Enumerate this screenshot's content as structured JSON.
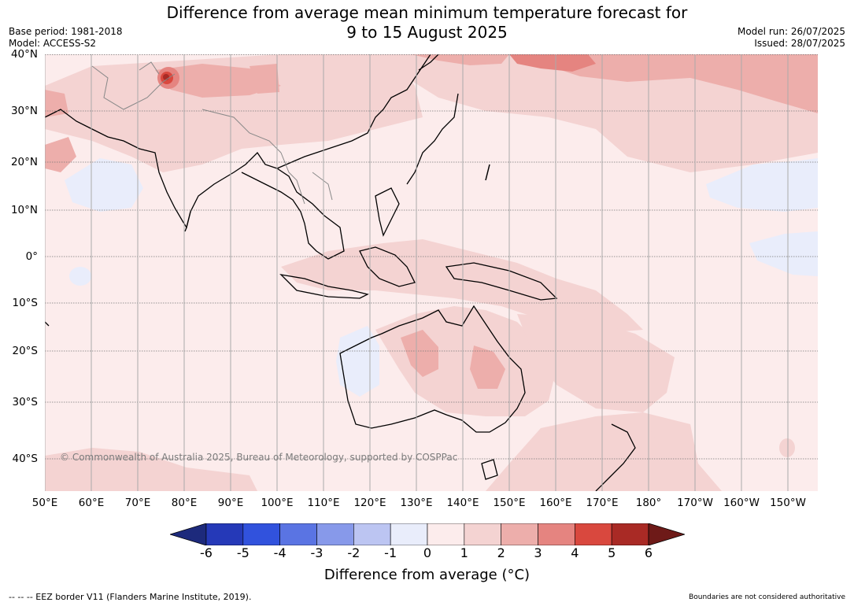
{
  "title_line1": "Difference from average mean minimum temperature forecast for",
  "title_line2": "9 to 15 August 2025",
  "base_period": "Base period: 1981-2018",
  "model": "Model: ACCESS-S2",
  "model_run": "Model run: 26/07/2025",
  "issued": "Issued: 28/07/2025",
  "copyright": "© Commonwealth of Australia 2025, Bureau of Meteorology, supported by COSPPac",
  "footer_left": "-- -- -- EEZ border V11 (Flanders Marine Institute, 2019).",
  "footer_right": "Boundaries are not considered authoritative",
  "lat_labels": [
    "40°N",
    "30°N",
    "20°N",
    "10°N",
    "0°",
    "10°S",
    "20°S",
    "30°S",
    "40°S"
  ],
  "lon_labels": [
    "50°E",
    "60°E",
    "70°E",
    "80°E",
    "90°E",
    "100°E",
    "110°E",
    "120°E",
    "130°E",
    "140°E",
    "150°E",
    "160°E",
    "170°E",
    "180°",
    "170°W",
    "160°W",
    "150°W"
  ],
  "colorbar": {
    "label": "Difference from average (°C)",
    "ticks": [
      "-6",
      "-5",
      "-4",
      "-3",
      "-2",
      "-1",
      "0",
      "1",
      "2",
      "3",
      "4",
      "5",
      "6"
    ],
    "colors": [
      "#1d2a7c",
      "#2539b8",
      "#3152dd",
      "#5a74e3",
      "#8799ea",
      "#bcc5f2",
      "#e9edfb",
      "#fcecec",
      "#f4d3d2",
      "#edaeab",
      "#e58480",
      "#d9483e",
      "#a92a25",
      "#6e1a18"
    ]
  }
}
